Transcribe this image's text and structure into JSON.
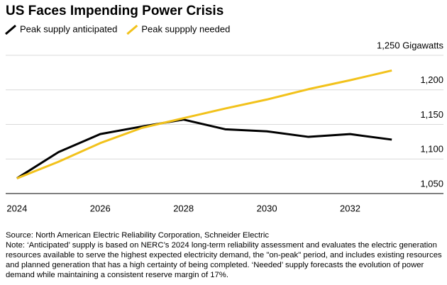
{
  "chart_data": {
    "type": "line",
    "title": "US Faces Impending Power Crisis",
    "x": [
      2024,
      2025,
      2026,
      2027,
      2028,
      2029,
      2030,
      2031,
      2032,
      2033
    ],
    "series": [
      {
        "name": "Peak supply anticipated",
        "color": "#000000",
        "values": [
          1072,
          1110,
          1136,
          1147,
          1157,
          1143,
          1140,
          1132,
          1136,
          1128
        ]
      },
      {
        "name": "Peak suppply needed",
        "color": "#f2c21b",
        "values": [
          1072,
          1096,
          1123,
          1145,
          1159,
          1173,
          1186,
          1201,
          1214,
          1228
        ]
      }
    ],
    "xlim": [
      2023.73,
      2034.24
    ],
    "xticks": [
      2024,
      2026,
      2028,
      2030,
      2032
    ],
    "ylim": [
      1050,
      1250
    ],
    "yticks": [
      {
        "value": 1050,
        "label": "1,050"
      },
      {
        "value": 1100,
        "label": "1,100"
      },
      {
        "value": 1150,
        "label": "1,150"
      },
      {
        "value": 1200,
        "label": "1,200"
      },
      {
        "value": 1250,
        "label": "1,250 Gigawatts"
      }
    ],
    "grid": true,
    "source": "Source: North American Electric Reliability Corporation, Schneider Electric",
    "note": "Note: ‘Anticipated’ supply is based on NERC’s 2024 long-term reliability assessment and evaluates the electric generation resources available to serve the highest expected electricity demand, the \"on-peak\" period, and includes existing resources and planned generation that has a high certainty of being completed. ‘Needed’ supply forecasts the evolution of power demand while maintaining a consistent reserve margin of 17%."
  }
}
